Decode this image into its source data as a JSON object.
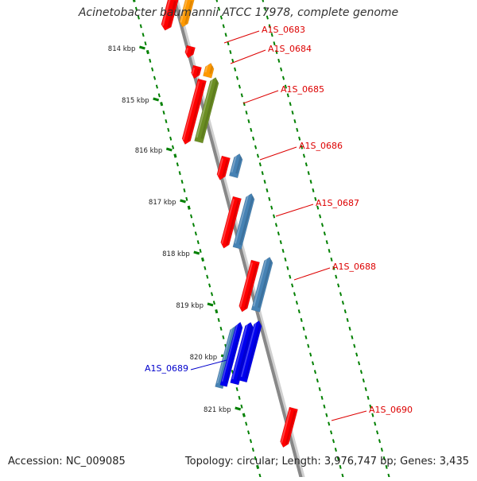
{
  "title": "Acinetobacter baumannii ATCC 17978, complete genome",
  "footer": {
    "accession": "Accession: NC_009085",
    "stats": "Topology: circular; Length: 3,976,747 bp; Genes: 3,435"
  },
  "scale": {
    "unit": "kbp",
    "ticks": [
      "814 kbp",
      "815 kbp",
      "816 kbp",
      "817 kbp",
      "818 kbp",
      "819 kbp",
      "820 kbp",
      "821 kbp"
    ]
  },
  "genes": [
    {
      "label": "A1S_0683",
      "strand": "forward",
      "label_color": "#dd0000"
    },
    {
      "label": "A1S_0684",
      "strand": "forward",
      "label_color": "#dd0000"
    },
    {
      "label": "A1S_0685",
      "strand": "forward",
      "label_color": "#dd0000"
    },
    {
      "label": "A1S_0686",
      "strand": "forward",
      "label_color": "#dd0000"
    },
    {
      "label": "A1S_0687",
      "strand": "forward",
      "label_color": "#dd0000"
    },
    {
      "label": "A1S_0688",
      "strand": "forward",
      "label_color": "#dd0000"
    },
    {
      "label": "A1S_0689",
      "strand": "reverse",
      "label_color": "#0000cc"
    },
    {
      "label": "A1S_0690",
      "strand": "forward",
      "label_color": "#dd0000"
    }
  ],
  "colors": {
    "cds": "#ff0000",
    "orange": "#ff9900",
    "olive": "#6b8e23",
    "steelblue": "#4682b4",
    "blue": "#0000ee",
    "backbone": "#888888",
    "ticks": "#008000"
  }
}
